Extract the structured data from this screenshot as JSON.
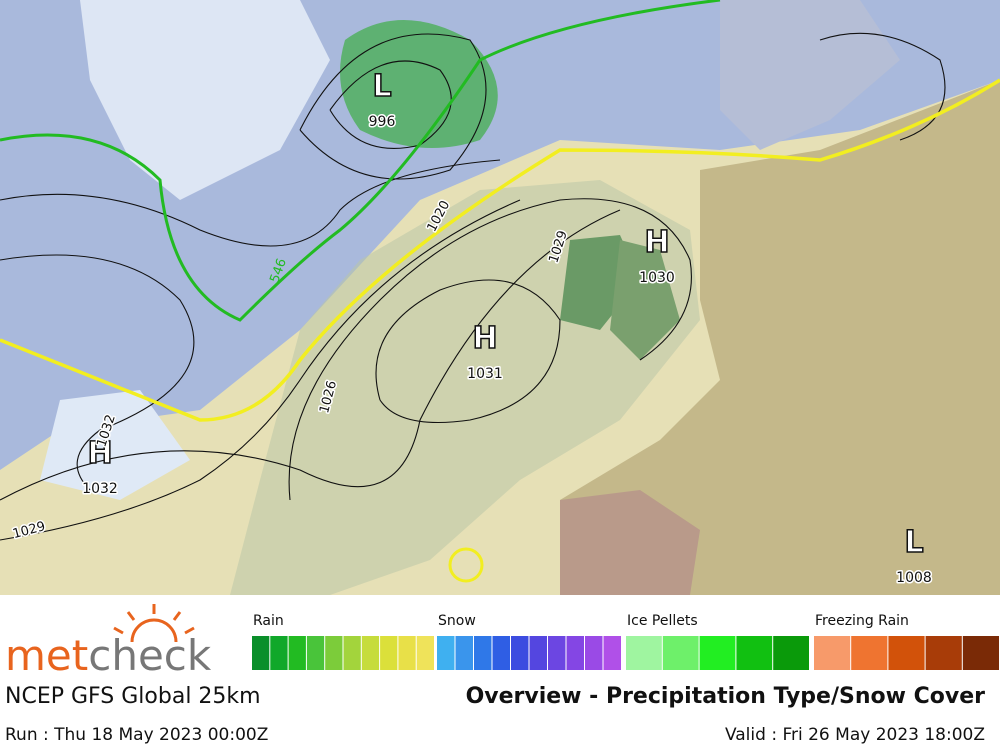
{
  "map": {
    "pressure_centers": [
      {
        "letter": "L",
        "value": 996
      },
      {
        "letter": "H",
        "value": 1030
      },
      {
        "letter": "H",
        "value": 1031
      },
      {
        "letter": "H",
        "value": 1032
      },
      {
        "letter": "L",
        "value": 1008
      }
    ],
    "isobar_labels": [
      1020,
      1029,
      1026,
      1029,
      1032
    ],
    "thickness_labels": [
      546
    ]
  },
  "legend": {
    "groups": [
      {
        "name": "Rain",
        "colors": [
          "#0a8f2a",
          "#10a82a",
          "#22bb22",
          "#49c43a",
          "#7ccc3a",
          "#a3d43c",
          "#c6dc3c",
          "#dbe03a",
          "#e8e048",
          "#efe35a"
        ]
      },
      {
        "name": "Snow",
        "colors": [
          "#3fb0f0",
          "#3a95ec",
          "#2f78e8",
          "#2f5ee4",
          "#3c4ce0",
          "#5446e0",
          "#6c46e2",
          "#8446e4",
          "#9a4ae6",
          "#b050e8"
        ]
      },
      {
        "name": "Ice Pellets",
        "colors": [
          "#9ff5a0",
          "#6ef06a",
          "#22ee22",
          "#11c011",
          "#0a9a0a"
        ]
      },
      {
        "name": "Freezing Rain",
        "colors": [
          "#f79a6a",
          "#ef7430",
          "#d2520a",
          "#a83c08",
          "#7a2a06"
        ]
      }
    ]
  },
  "footer": {
    "logo_part1": "met",
    "logo_part2": "check",
    "model": "NCEP GFS Global 25km",
    "run": "Run : Thu 18 May 2023 00:00Z",
    "title": "Overview - Precipitation Type/Snow Cover",
    "valid": "Valid : Fri 26 May 2023 18:00Z"
  }
}
